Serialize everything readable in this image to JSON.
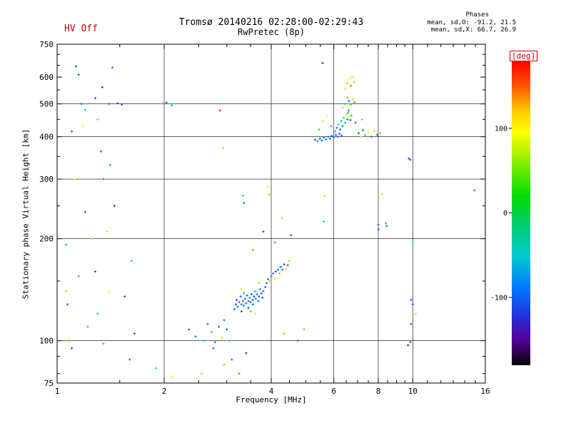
{
  "annotations": {
    "hv_status": "HV Off",
    "phases_label": "Phases",
    "phases_mean_o": "mean, sd,O: -91.2, 21.5",
    "phases_mean_x": "mean, sd,X:  66.7, 26.9"
  },
  "chart_data": {
    "type": "scatter",
    "title": "Tromsø 20140216 02:28:00-02:29:43",
    "subtitle": "RwPretec (8p)",
    "xlabel": "Frequency [MHz]",
    "ylabel": "Stationary phase Virtual Height [km]",
    "x_scale": "log",
    "y_scale": "log",
    "xlim": [
      1,
      16
    ],
    "ylim": [
      75,
      750
    ],
    "x_major_ticks": [
      1,
      2,
      4,
      6,
      8,
      10,
      16
    ],
    "x_minor_ticks": [
      1.5,
      2.5,
      3,
      3.5,
      4.5,
      5,
      5.5,
      6.5,
      7,
      7.5,
      8.5,
      9,
      9.5,
      11,
      12,
      13,
      14,
      15
    ],
    "y_major_ticks": [
      75,
      100,
      200,
      300,
      400,
      500,
      600,
      750
    ],
    "y_minor_ticks": [
      80,
      90,
      150,
      250,
      350,
      450,
      550,
      650,
      700
    ],
    "x_gridlines": [
      2,
      4,
      6,
      8,
      10
    ],
    "y_gridlines": [
      100,
      200,
      300,
      400,
      500
    ],
    "grid": true,
    "legend_position": "none",
    "colorbar": {
      "label": "[deg]",
      "label_color": "#cc0000",
      "range": [
        -180,
        180
      ],
      "ticks": [
        100,
        0,
        -100
      ],
      "stops": [
        [
          180,
          "#ff0000"
        ],
        [
          150,
          "#ff5500"
        ],
        [
          120,
          "#ffcc00"
        ],
        [
          95,
          "#ffff00"
        ],
        [
          60,
          "#88ee00"
        ],
        [
          20,
          "#00dd00"
        ],
        [
          -10,
          "#00cc66"
        ],
        [
          -50,
          "#00cccc"
        ],
        [
          -90,
          "#0077ff"
        ],
        [
          -120,
          "#2233dd"
        ],
        [
          -150,
          "#550099"
        ],
        [
          -170,
          "#220033"
        ],
        [
          -180,
          "#000000"
        ]
      ]
    },
    "point_format": [
      "frequency_MHz",
      "virtual_height_km",
      "phase_deg"
    ],
    "points": [
      [
        1.06,
        140,
        60
      ],
      [
        1.06,
        192,
        -55
      ],
      [
        1.07,
        128,
        -95
      ],
      [
        1.08,
        100,
        40
      ],
      [
        1.1,
        415,
        -100
      ],
      [
        1.1,
        95,
        -120
      ],
      [
        1.12,
        300,
        115
      ],
      [
        1.13,
        645,
        -110
      ],
      [
        1.15,
        610,
        -95
      ],
      [
        1.15,
        155,
        -60
      ],
      [
        1.17,
        500,
        -100
      ],
      [
        1.18,
        430,
        110
      ],
      [
        1.2,
        480,
        -55
      ],
      [
        1.2,
        240,
        -100
      ],
      [
        1.22,
        110,
        25
      ],
      [
        1.33,
        362,
        170
      ],
      [
        1.25,
        200,
        60
      ],
      [
        1.28,
        520,
        -100
      ],
      [
        1.28,
        160,
        -110
      ],
      [
        1.3,
        450,
        130
      ],
      [
        1.3,
        120,
        -60
      ],
      [
        1.34,
        560,
        -115
      ],
      [
        1.35,
        300,
        -95
      ],
      [
        1.35,
        98,
        140
      ],
      [
        1.38,
        210,
        115
      ],
      [
        1.4,
        500,
        -100
      ],
      [
        1.4,
        140,
        95
      ],
      [
        1.41,
        330,
        20
      ],
      [
        1.43,
        640,
        -100
      ],
      [
        1.45,
        250,
        -105
      ],
      [
        1.48,
        502,
        -95
      ],
      [
        1.52,
        498,
        -100
      ],
      [
        1.55,
        135,
        -110
      ],
      [
        1.6,
        88,
        -95
      ],
      [
        1.62,
        172,
        -55
      ],
      [
        1.65,
        105,
        -100
      ],
      [
        2.03,
        505,
        -100
      ],
      [
        2.1,
        495,
        -60
      ],
      [
        1.9,
        83,
        -50
      ],
      [
        2.1,
        78,
        95
      ],
      [
        2.55,
        80,
        60
      ],
      [
        2.75,
        95,
        -100
      ],
      [
        2.95,
        85,
        130
      ],
      [
        3.1,
        88,
        -95
      ],
      [
        3.25,
        80,
        20
      ],
      [
        3.4,
        92,
        -110
      ],
      [
        2.35,
        108,
        -100
      ],
      [
        2.45,
        103,
        -90
      ],
      [
        2.6,
        100,
        -20
      ],
      [
        2.65,
        112,
        -100
      ],
      [
        2.72,
        106,
        35
      ],
      [
        2.78,
        99,
        -95
      ],
      [
        2.85,
        110,
        -105
      ],
      [
        2.9,
        102,
        120
      ],
      [
        2.95,
        115,
        -85
      ],
      [
        3.0,
        108,
        -100
      ],
      [
        3.05,
        100,
        -60
      ],
      [
        2.93,
        370,
        120
      ],
      [
        3.33,
        268,
        -50
      ],
      [
        2.87,
        478,
        170
      ],
      [
        3.9,
        285,
        95
      ],
      [
        3.55,
        185,
        140
      ],
      [
        3.8,
        210,
        -100
      ],
      [
        3.95,
        270,
        60
      ],
      [
        4.1,
        195,
        -55
      ],
      [
        4.3,
        230,
        120
      ],
      [
        3.35,
        255,
        -95
      ],
      [
        4.55,
        205,
        -100
      ],
      [
        3.15,
        124,
        -100
      ],
      [
        3.18,
        128,
        -95
      ],
      [
        3.2,
        132,
        -110
      ],
      [
        3.22,
        126,
        -90
      ],
      [
        3.25,
        130,
        -100
      ],
      [
        3.28,
        135,
        -105
      ],
      [
        3.3,
        128,
        -95
      ],
      [
        3.3,
        122,
        -115
      ],
      [
        3.33,
        131,
        -100
      ],
      [
        3.35,
        127,
        -90
      ],
      [
        3.35,
        138,
        -60
      ],
      [
        3.38,
        133,
        -100
      ],
      [
        3.4,
        129,
        -105
      ],
      [
        3.42,
        136,
        -95
      ],
      [
        3.45,
        131,
        -100
      ],
      [
        3.45,
        125,
        -110
      ],
      [
        3.48,
        134,
        -90
      ],
      [
        3.5,
        130,
        -100
      ],
      [
        3.52,
        137,
        -105
      ],
      [
        3.55,
        132,
        -95
      ],
      [
        3.55,
        128,
        -100
      ],
      [
        3.58,
        135,
        -110
      ],
      [
        3.6,
        140,
        -60
      ],
      [
        3.62,
        133,
        -100
      ],
      [
        3.65,
        137,
        -95
      ],
      [
        3.68,
        131,
        -105
      ],
      [
        3.7,
        135,
        -100
      ],
      [
        3.72,
        142,
        -90
      ],
      [
        3.75,
        138,
        -100
      ],
      [
        3.78,
        134,
        -110
      ],
      [
        3.8,
        140,
        -95
      ],
      [
        3.85,
        144,
        -100
      ],
      [
        3.5,
        122,
        40
      ],
      [
        3.6,
        120,
        110
      ],
      [
        3.3,
        142,
        100
      ],
      [
        3.7,
        148,
        65
      ],
      [
        3.88,
        148,
        -95
      ],
      [
        3.92,
        152,
        -100
      ],
      [
        3.95,
        150,
        120
      ],
      [
        4.0,
        155,
        -90
      ],
      [
        4.05,
        158,
        -100
      ],
      [
        4.1,
        153,
        95
      ],
      [
        4.12,
        160,
        -105
      ],
      [
        4.18,
        162,
        -95
      ],
      [
        4.22,
        158,
        130
      ],
      [
        4.25,
        165,
        -100
      ],
      [
        4.3,
        162,
        -90
      ],
      [
        4.35,
        168,
        -100
      ],
      [
        4.4,
        163,
        110
      ],
      [
        4.45,
        167,
        -95
      ],
      [
        4.5,
        172,
        60
      ],
      [
        4.35,
        105,
        130
      ],
      [
        4.75,
        100,
        -95
      ],
      [
        4.95,
        108,
        40
      ],
      [
        5.32,
        392,
        -100
      ],
      [
        5.4,
        388,
        -95
      ],
      [
        5.48,
        395,
        -105
      ],
      [
        5.55,
        390,
        -100
      ],
      [
        5.62,
        398,
        -90
      ],
      [
        5.7,
        393,
        -100
      ],
      [
        5.78,
        400,
        -110
      ],
      [
        5.85,
        395,
        -95
      ],
      [
        5.92,
        402,
        -100
      ],
      [
        6.0,
        398,
        -90
      ],
      [
        6.08,
        405,
        -100
      ],
      [
        6.15,
        400,
        -105
      ],
      [
        6.22,
        408,
        -95
      ],
      [
        6.3,
        403,
        -100
      ],
      [
        6.05,
        415,
        -60
      ],
      [
        6.12,
        425,
        -95
      ],
      [
        6.18,
        435,
        -50
      ],
      [
        6.25,
        420,
        -100
      ],
      [
        6.3,
        445,
        -20
      ],
      [
        6.35,
        430,
        -90
      ],
      [
        6.4,
        455,
        30
      ],
      [
        6.45,
        440,
        -60
      ],
      [
        6.5,
        465,
        110
      ],
      [
        6.55,
        450,
        -95
      ],
      [
        6.58,
        470,
        -45
      ],
      [
        6.62,
        458,
        95
      ],
      [
        6.68,
        448,
        -100
      ],
      [
        6.72,
        462,
        20
      ],
      [
        6.6,
        478,
        -90
      ],
      [
        6.35,
        488,
        120
      ],
      [
        6.45,
        500,
        -55
      ],
      [
        6.55,
        492,
        95
      ],
      [
        6.62,
        510,
        -95
      ],
      [
        6.7,
        498,
        40
      ],
      [
        6.78,
        515,
        115
      ],
      [
        6.85,
        505,
        -60
      ],
      [
        6.55,
        522,
        130
      ],
      [
        6.45,
        555,
        110
      ],
      [
        6.55,
        575,
        130
      ],
      [
        6.62,
        590,
        100
      ],
      [
        6.7,
        565,
        140
      ],
      [
        6.75,
        600,
        120
      ],
      [
        6.85,
        580,
        60
      ],
      [
        7.05,
        410,
        -95
      ],
      [
        7.15,
        400,
        115
      ],
      [
        7.25,
        418,
        -100
      ],
      [
        7.35,
        405,
        -55
      ],
      [
        7.5,
        412,
        95
      ],
      [
        7.65,
        400,
        -95
      ],
      [
        7.8,
        415,
        120
      ],
      [
        7.95,
        405,
        -100
      ],
      [
        8.1,
        410,
        60
      ],
      [
        5.6,
        445,
        120
      ],
      [
        5.75,
        460,
        95
      ],
      [
        5.9,
        430,
        -60
      ],
      [
        6.9,
        440,
        -100
      ],
      [
        7.2,
        450,
        130
      ],
      [
        5.45,
        420,
        40
      ],
      [
        5.58,
        660,
        -110
      ],
      [
        5.65,
        268,
        120
      ],
      [
        5.62,
        225,
        -55
      ],
      [
        8.4,
        222,
        -55
      ],
      [
        8.45,
        218,
        -95
      ],
      [
        8.2,
        270,
        120
      ],
      [
        8.0,
        220,
        -105
      ],
      [
        8.02,
        213,
        -95
      ],
      [
        9.75,
        345,
        -100
      ],
      [
        9.85,
        342,
        -110
      ],
      [
        9.9,
        132,
        -95
      ],
      [
        10.0,
        128,
        -100
      ],
      [
        10.2,
        120,
        115
      ],
      [
        10.0,
        196,
        -50
      ],
      [
        14.9,
        278,
        160
      ],
      [
        9.7,
        97,
        -120
      ],
      [
        9.85,
        99,
        -95
      ],
      [
        9.9,
        112,
        -100
      ]
    ]
  }
}
